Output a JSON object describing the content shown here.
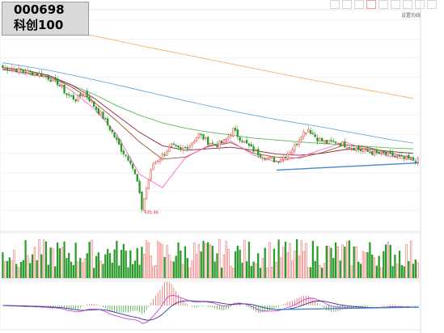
{
  "header": {
    "code": "000698",
    "name": "科创100"
  },
  "toolbar": {
    "items": [
      {
        "label": "",
        "active": false
      },
      {
        "label": "",
        "active": false
      },
      {
        "label": "",
        "active": false
      },
      {
        "label": "",
        "active": true
      },
      {
        "label": "",
        "active": false
      },
      {
        "label": "",
        "active": false
      },
      {
        "label": "",
        "active": false
      },
      {
        "label": "",
        "active": false
      },
      {
        "label": "",
        "active": false
      }
    ]
  },
  "price_pane": {
    "set_ma_label": "设置均线",
    "ma_legend": [
      {
        "label": "",
        "color": "#e0a0e0"
      },
      {
        "label": "",
        "color": "#4a90d9"
      },
      {
        "label": "",
        "color": "#f4b860"
      }
    ]
  },
  "volume_pane": {
    "indicator_label": "",
    "buttons": [
      "",
      "",
      ""
    ]
  },
  "macd_pane": {
    "indicator_label": "",
    "buttons": [
      "",
      "",
      ""
    ]
  },
  "colors": {
    "up": "#e8504a",
    "down": "#2a9a2a",
    "trend": "#4a86c8",
    "ma5": "#ff66cc",
    "ma10": "#a0522d",
    "ma20": "#8b2252",
    "ma60": "#5cb85c",
    "ma120": "#6fa8dc",
    "ma250": "#f6b26b",
    "dif": "#cc44cc",
    "dea": "#333399"
  },
  "chart_data": {
    "type": "candlestick",
    "title": "",
    "y_ticks": [],
    "y_range": [
      650,
      1210
    ],
    "annotations": [
      {
        "text": "695.46",
        "value": 695.46
      }
    ],
    "ma_series": [
      {
        "name": "MA250",
        "color_key": "ma250",
        "values": [
          [
            0,
            1200
          ],
          [
            10,
            1192
          ],
          [
            20,
            1182
          ],
          [
            30,
            1170
          ],
          [
            40,
            1158
          ],
          [
            50,
            1146
          ],
          [
            60,
            1133
          ],
          [
            70,
            1121
          ],
          [
            80,
            1109
          ],
          [
            90,
            1097
          ],
          [
            100,
            1085
          ],
          [
            110,
            1073
          ],
          [
            120,
            1061
          ],
          [
            130,
            1049
          ],
          [
            140,
            1038
          ],
          [
            150,
            1027
          ],
          [
            160,
            1016
          ],
          [
            170,
            1005
          ],
          [
            180,
            994
          ]
        ]
      },
      {
        "name": "MA120",
        "color_key": "ma120",
        "values": [
          [
            0,
            1088
          ],
          [
            10,
            1078
          ],
          [
            20,
            1068
          ],
          [
            30,
            1056
          ],
          [
            40,
            1043
          ],
          [
            50,
            1030
          ],
          [
            60,
            1016
          ],
          [
            70,
            1002
          ],
          [
            80,
            988
          ],
          [
            90,
            975
          ],
          [
            100,
            962
          ],
          [
            110,
            950
          ],
          [
            120,
            939
          ],
          [
            130,
            929
          ],
          [
            140,
            919
          ],
          [
            150,
            908
          ],
          [
            160,
            897
          ],
          [
            170,
            886
          ],
          [
            180,
            877
          ]
        ]
      },
      {
        "name": "MA60",
        "color_key": "ma60",
        "values": [
          [
            0,
            1070
          ],
          [
            10,
            1062
          ],
          [
            20,
            1050
          ],
          [
            30,
            1030
          ],
          [
            40,
            1005
          ],
          [
            50,
            975
          ],
          [
            60,
            950
          ],
          [
            70,
            930
          ],
          [
            80,
            916
          ],
          [
            90,
            906
          ],
          [
            100,
            898
          ],
          [
            110,
            890
          ],
          [
            120,
            885
          ],
          [
            130,
            880
          ],
          [
            140,
            876
          ],
          [
            150,
            872
          ],
          [
            160,
            868
          ],
          [
            170,
            864
          ],
          [
            180,
            862
          ]
        ]
      },
      {
        "name": "MA20",
        "color_key": "ma20",
        "values": [
          [
            0,
            1075
          ],
          [
            10,
            1068
          ],
          [
            20,
            1055
          ],
          [
            30,
            1030
          ],
          [
            40,
            995
          ],
          [
            50,
            950
          ],
          [
            60,
            905
          ],
          [
            70,
            870
          ],
          [
            80,
            858
          ],
          [
            90,
            862
          ],
          [
            100,
            866
          ],
          [
            110,
            858
          ],
          [
            120,
            848
          ],
          [
            130,
            845
          ],
          [
            140,
            850
          ],
          [
            150,
            860
          ],
          [
            160,
            862
          ],
          [
            170,
            855
          ],
          [
            180,
            850
          ]
        ]
      },
      {
        "name": "MA10",
        "color_key": "ma10",
        "values": [
          [
            0,
            1070
          ],
          [
            10,
            1062
          ],
          [
            20,
            1052
          ],
          [
            30,
            1025
          ],
          [
            40,
            985
          ],
          [
            50,
            935
          ],
          [
            60,
            880
          ],
          [
            70,
            835
          ],
          [
            80,
            840
          ],
          [
            90,
            868
          ],
          [
            100,
            878
          ],
          [
            110,
            850
          ],
          [
            120,
            840
          ],
          [
            130,
            838
          ],
          [
            140,
            852
          ],
          [
            150,
            872
          ],
          [
            160,
            866
          ],
          [
            170,
            850
          ],
          [
            180,
            838
          ]
        ]
      },
      {
        "name": "MA5",
        "color_key": "ma5",
        "values": [
          [
            0,
            1072
          ],
          [
            10,
            1058
          ],
          [
            20,
            1050
          ],
          [
            30,
            1015
          ],
          [
            40,
            968
          ],
          [
            50,
            900
          ],
          [
            60,
            795
          ],
          [
            70,
            760
          ],
          [
            80,
            838
          ],
          [
            90,
            870
          ],
          [
            100,
            882
          ],
          [
            110,
            845
          ],
          [
            120,
            828
          ],
          [
            130,
            840
          ],
          [
            140,
            860
          ],
          [
            150,
            880
          ],
          [
            160,
            858
          ],
          [
            170,
            842
          ],
          [
            180,
            832
          ]
        ]
      }
    ],
    "trend_line": [
      [
        120,
        806
      ],
      [
        183,
        825
      ]
    ],
    "volume": {
      "values": [],
      "ma": []
    },
    "macd": {
      "dif": [],
      "dea": []
    }
  }
}
